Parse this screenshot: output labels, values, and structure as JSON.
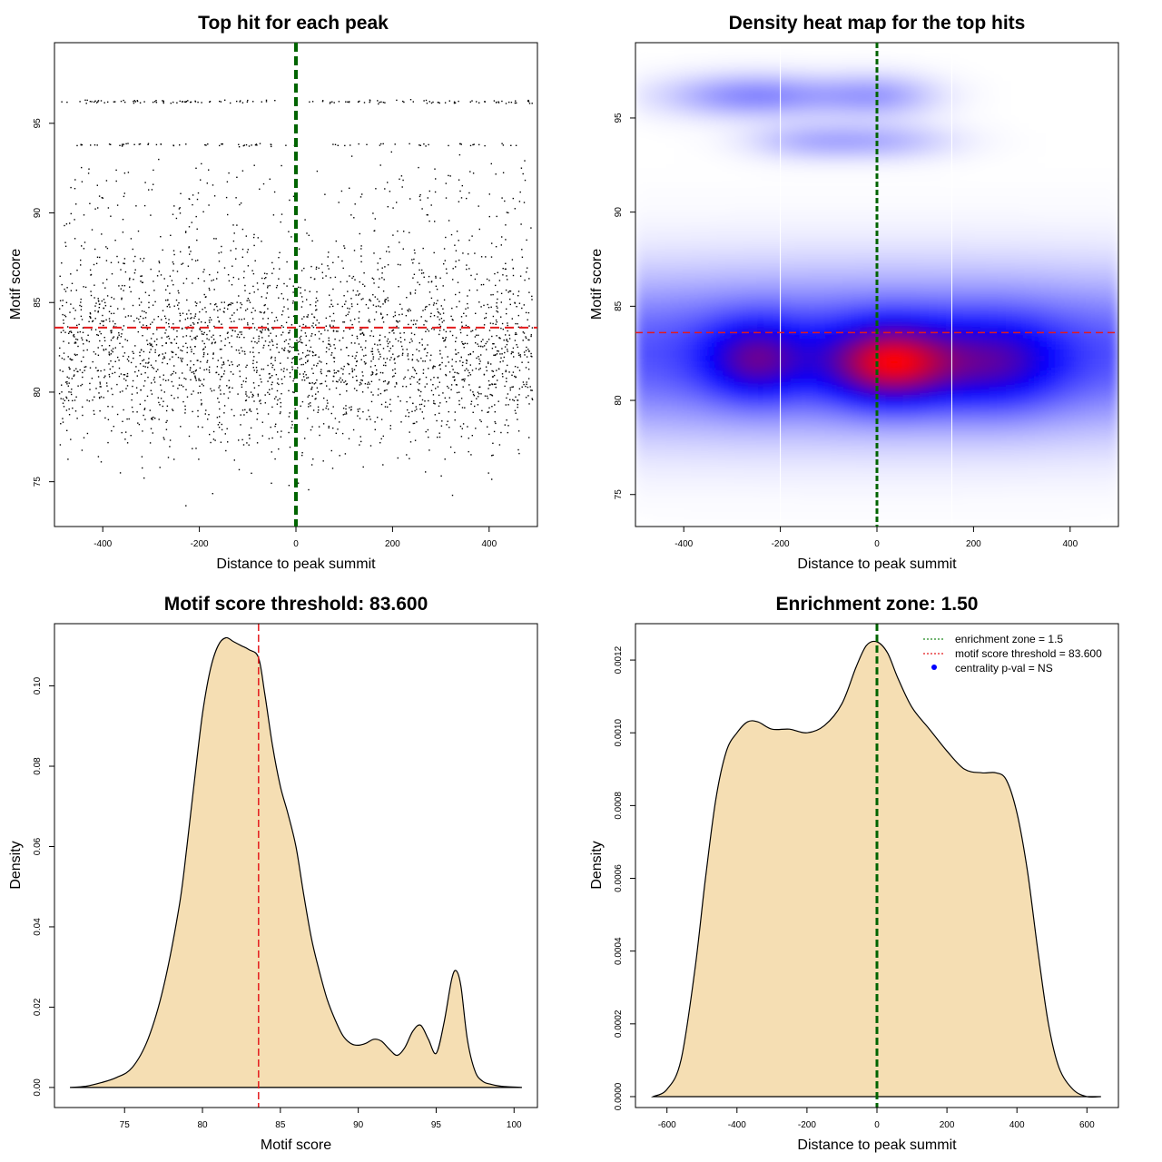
{
  "colors": {
    "threshold_line": "#e41a1c",
    "zone_line": "#006400",
    "density_fill": "#f5deb3",
    "point": "#000000",
    "heat_low": "#0000ff",
    "heat_high": "#ff0000"
  },
  "chart_data": [
    {
      "id": "scatter",
      "type": "scatter",
      "title": "Top hit for each peak",
      "xlabel": "Distance to peak summit",
      "ylabel": "Motif score",
      "xlim": [
        -500,
        500
      ],
      "ylim": [
        72.5,
        99.5
      ],
      "xticks": [
        -400,
        -200,
        0,
        200,
        400
      ],
      "yticks": [
        75,
        80,
        85,
        90,
        95
      ],
      "vline": 0,
      "hline": 83.6,
      "point_count": 3000,
      "score_bands": [
        {
          "center": 82.2,
          "spread": 2.6,
          "share": 0.8
        },
        {
          "center": 87.5,
          "spread": 1.8,
          "share": 0.08
        },
        {
          "center": 91.3,
          "spread": 0.9,
          "share": 0.04
        },
        {
          "center": 93.8,
          "spread": 0.05,
          "share": 0.03
        },
        {
          "center": 96.2,
          "spread": 0.05,
          "share": 0.04
        },
        {
          "center": 77.0,
          "spread": 1.5,
          "share": 0.01
        }
      ]
    },
    {
      "id": "heatmap",
      "type": "heatmap",
      "title": "Density heat map for the top hits",
      "xlabel": "Distance to peak summit",
      "ylabel": "Motif score",
      "xlim": [
        -500,
        500
      ],
      "ylim": [
        73.3,
        99.0
      ],
      "xticks": [
        -400,
        -200,
        0,
        200,
        400
      ],
      "yticks": [
        75,
        80,
        85,
        90,
        95
      ],
      "vline": 0,
      "hline": 83.6,
      "white_vlines": [
        -200,
        155
      ],
      "hotspots": [
        {
          "x": 30,
          "y": 82.0,
          "sx": 90,
          "sy": 1.4,
          "w": 1.0
        },
        {
          "x": -250,
          "y": 82.2,
          "sx": 70,
          "sy": 1.4,
          "w": 0.55
        },
        {
          "x": 250,
          "y": 82.0,
          "sx": 90,
          "sy": 1.6,
          "w": 0.45
        },
        {
          "x": 0,
          "y": 82.5,
          "sx": 800,
          "sy": 2.6,
          "w": 0.5
        },
        {
          "x": -250,
          "y": 96.2,
          "sx": 120,
          "sy": 0.7,
          "w": 0.28
        },
        {
          "x": 0,
          "y": 96.2,
          "sx": 80,
          "sy": 0.7,
          "w": 0.2
        },
        {
          "x": 0,
          "y": 93.8,
          "sx": 100,
          "sy": 0.6,
          "w": 0.16
        },
        {
          "x": -150,
          "y": 93.8,
          "sx": 80,
          "sy": 0.6,
          "w": 0.12
        }
      ]
    },
    {
      "id": "score_density",
      "type": "area",
      "title": "Motif score threshold: 83.600",
      "xlabel": "Motif score",
      "ylabel": "Density",
      "xlim": [
        70.5,
        101.5
      ],
      "ylim": [
        -0.005,
        0.1155
      ],
      "xticks": [
        75,
        80,
        85,
        90,
        95,
        100
      ],
      "yticks": [
        0.0,
        0.02,
        0.04,
        0.06,
        0.08,
        0.1
      ],
      "ytick_labels": [
        "0.00",
        "0.02",
        "0.04",
        "0.06",
        "0.08",
        "0.10"
      ],
      "vline": 83.6,
      "x": [
        71.5,
        72.5,
        73.5,
        74.5,
        75.5,
        76.5,
        77.5,
        78.5,
        79.0,
        79.5,
        80.0,
        80.5,
        81.0,
        81.5,
        82.0,
        82.5,
        83.0,
        83.6,
        84.0,
        84.5,
        85.0,
        85.5,
        86.0,
        86.5,
        87.0,
        87.5,
        88.0,
        88.5,
        89.0,
        89.5,
        90.0,
        90.5,
        91.0,
        91.5,
        92.0,
        92.5,
        93.0,
        93.5,
        94.0,
        94.5,
        95.0,
        95.5,
        96.0,
        96.3,
        96.6,
        97.0,
        97.5,
        98.0,
        98.5,
        99.0,
        99.5,
        100.5
      ],
      "y": [
        0.0,
        0.0003,
        0.0012,
        0.0025,
        0.005,
        0.012,
        0.025,
        0.045,
        0.06,
        0.077,
        0.093,
        0.104,
        0.11,
        0.112,
        0.111,
        0.11,
        0.109,
        0.107,
        0.098,
        0.085,
        0.075,
        0.068,
        0.06,
        0.048,
        0.037,
        0.029,
        0.022,
        0.017,
        0.013,
        0.011,
        0.0105,
        0.011,
        0.012,
        0.0115,
        0.0095,
        0.008,
        0.01,
        0.014,
        0.0155,
        0.012,
        0.0085,
        0.016,
        0.027,
        0.029,
        0.025,
        0.012,
        0.004,
        0.0015,
        0.0008,
        0.0004,
        0.0002,
        0.0
      ]
    },
    {
      "id": "position_density",
      "type": "area",
      "title": "Enrichment zone: 1.50",
      "xlabel": "Distance to peak summit",
      "ylabel": "Density",
      "xlim": [
        -690,
        690
      ],
      "ylim": [
        -3e-05,
        0.0013
      ],
      "xticks": [
        -600,
        -400,
        -200,
        0,
        200,
        400,
        600
      ],
      "yticks": [
        0,
        0.0002,
        0.0004,
        0.0006,
        0.0008,
        0.001,
        0.0012
      ],
      "ytick_labels": [
        "0.0000",
        "0.0002",
        "0.0004",
        "0.0006",
        "0.0008",
        "0.0010",
        "0.0012"
      ],
      "vline": 0,
      "x": [
        -640,
        -600,
        -560,
        -520,
        -490,
        -460,
        -430,
        -400,
        -370,
        -340,
        -300,
        -250,
        -200,
        -150,
        -100,
        -60,
        -30,
        0,
        30,
        60,
        100,
        150,
        200,
        250,
        300,
        340,
        370,
        400,
        430,
        460,
        490,
        520,
        560,
        600,
        640
      ],
      "y": [
        0.0,
        2e-05,
        0.0001,
        0.00035,
        0.0006,
        0.00082,
        0.00095,
        0.001,
        0.00103,
        0.00103,
        0.00101,
        0.00101,
        0.001,
        0.00102,
        0.00108,
        0.00118,
        0.00124,
        0.00125,
        0.00122,
        0.00115,
        0.00107,
        0.00101,
        0.00095,
        0.0009,
        0.00089,
        0.00089,
        0.00087,
        0.00078,
        0.00062,
        0.0004,
        0.0002,
        8e-05,
        2e-05,
        0.0,
        0.0
      ],
      "legend": [
        {
          "label": "enrichment zone = 1.5",
          "style": "line",
          "color": "#228b22"
        },
        {
          "label": "motif score threshold = 83.600",
          "style": "line",
          "color": "#e41a1c"
        },
        {
          "label": "centrality p-val = NS",
          "style": "dot",
          "color": "#0000ff"
        }
      ]
    }
  ]
}
